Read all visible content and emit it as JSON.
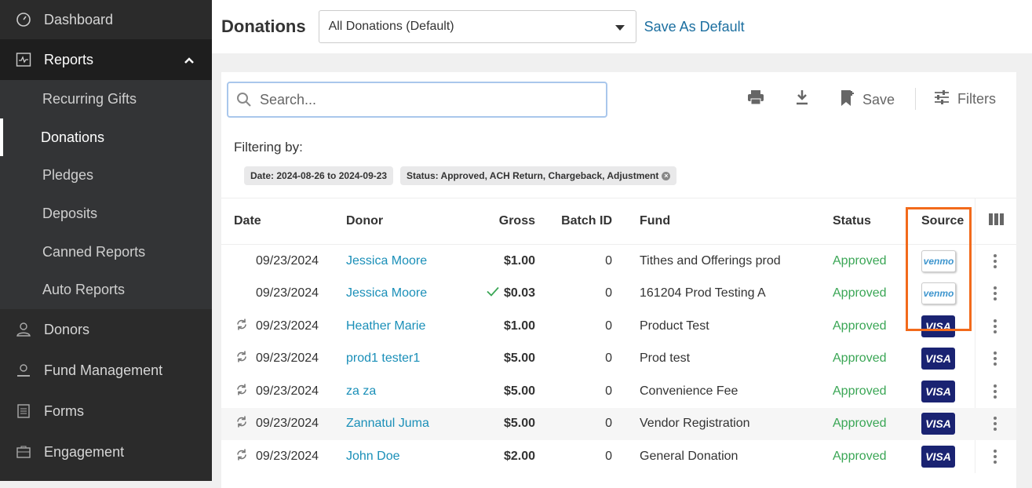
{
  "sidebar": {
    "items": [
      {
        "label": "Dashboard",
        "icon": "dashboard-gauge-icon"
      },
      {
        "label": "Reports",
        "icon": "reports-chart-icon",
        "expanded": true
      },
      {
        "label": "Donors",
        "icon": "user-icon"
      },
      {
        "label": "Fund Management",
        "icon": "fund-icon"
      },
      {
        "label": "Forms",
        "icon": "form-icon"
      },
      {
        "label": "Engagement",
        "icon": "engagement-icon"
      }
    ],
    "reports_sub": [
      "Recurring Gifts",
      "Donations",
      "Pledges",
      "Deposits",
      "Canned Reports",
      "Auto Reports"
    ],
    "selected": "Donations"
  },
  "header": {
    "title": "Donations",
    "view": "All Donations (Default)",
    "save_default": "Save As Default"
  },
  "toolbar": {
    "search_placeholder": "Search...",
    "save": "Save",
    "filters": "Filters"
  },
  "filters": {
    "label": "Filtering by:",
    "chips": [
      "Date: 2024-08-26 to 2024-09-23",
      "Status: Approved, ACH Return, Chargeback, Adjustment"
    ]
  },
  "table": {
    "columns": [
      "Date",
      "Donor",
      "Gross",
      "Batch ID",
      "Fund",
      "Status",
      "Source"
    ],
    "rows": [
      {
        "icon": "",
        "date": "09/23/2024",
        "donor": "Jessica Moore",
        "gross": "$1.00",
        "batch": "0",
        "fund": "Tithes and Offerings prod",
        "status": "Approved",
        "source": "venmo"
      },
      {
        "icon": "",
        "check": true,
        "date": "09/23/2024",
        "donor": "Jessica Moore",
        "gross": "$0.03",
        "batch": "0",
        "fund": "161204 Prod Testing A",
        "status": "Approved",
        "source": "venmo"
      },
      {
        "icon": "recurring",
        "date": "09/23/2024",
        "donor": "Heather Marie",
        "gross": "$1.00",
        "batch": "0",
        "fund": "Product Test",
        "status": "Approved",
        "source": "VISA"
      },
      {
        "icon": "recurring",
        "date": "09/23/2024",
        "donor": "prod1 tester1",
        "gross": "$5.00",
        "batch": "0",
        "fund": "Prod test",
        "status": "Approved",
        "source": "VISA"
      },
      {
        "icon": "recurring",
        "date": "09/23/2024",
        "donor": "za za",
        "gross": "$5.00",
        "batch": "0",
        "fund": "Convenience Fee",
        "status": "Approved",
        "source": "VISA"
      },
      {
        "icon": "recurring",
        "date": "09/23/2024",
        "donor": "Zannatul Juma",
        "gross": "$5.00",
        "batch": "0",
        "fund": "Vendor Registration",
        "status": "Approved",
        "source": "VISA",
        "hovered": true
      },
      {
        "icon": "recurring",
        "date": "09/23/2024",
        "donor": "John Doe",
        "gross": "$2.00",
        "batch": "0",
        "fund": "General Donation",
        "status": "Approved",
        "source": "VISA"
      }
    ]
  },
  "colors": {
    "link": "#1a8fb8",
    "approved": "#3aa655",
    "highlight": "#f26a1b",
    "visa": "#1a2372",
    "venmo": "#3d95ce"
  }
}
